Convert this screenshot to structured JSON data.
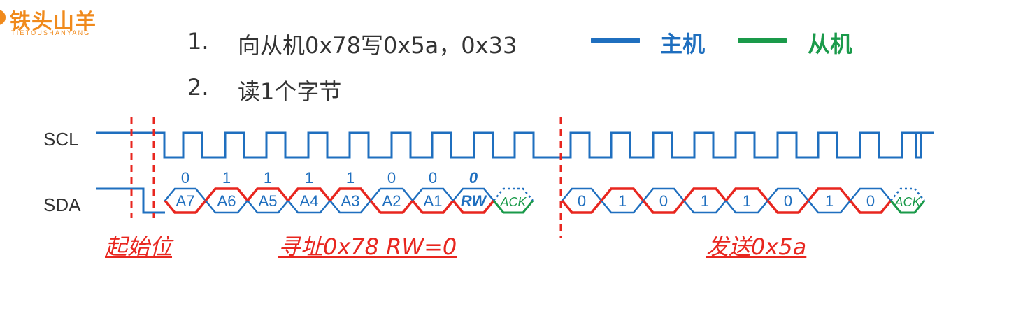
{
  "logo": {
    "name": "铁头山羊",
    "subtitle": "TIETOUSHANYANG"
  },
  "items": [
    {
      "num": "1.",
      "text": "向从机0x78写0x5a，0x33"
    },
    {
      "num": "2.",
      "text": "读1个字节"
    }
  ],
  "legend": [
    {
      "label": "主机",
      "color": "#1f6fbf"
    },
    {
      "label": "从机",
      "color": "#1a9a4a"
    }
  ],
  "signals": {
    "scl": "SCL",
    "sda": "SDA"
  },
  "bits": {
    "address_values": [
      "0",
      "1",
      "1",
      "1",
      "1",
      "0",
      "0",
      "0"
    ],
    "address_names": [
      "A7",
      "A6",
      "A5",
      "A4",
      "A3",
      "A2",
      "A1",
      "RW"
    ],
    "address_ack": "ACK",
    "data_values": [
      "0",
      "1",
      "0",
      "1",
      "1",
      "0",
      "1",
      "0"
    ],
    "data_ack": "ACK"
  },
  "captions": {
    "start": "起始位",
    "address": "寻址0x78 RW=0",
    "data": "发送0x5a"
  },
  "colors": {
    "host": "#1f6fbf",
    "slave": "#1a9a4a",
    "highlight": "#e8261f",
    "logo": "#f08a1c"
  }
}
